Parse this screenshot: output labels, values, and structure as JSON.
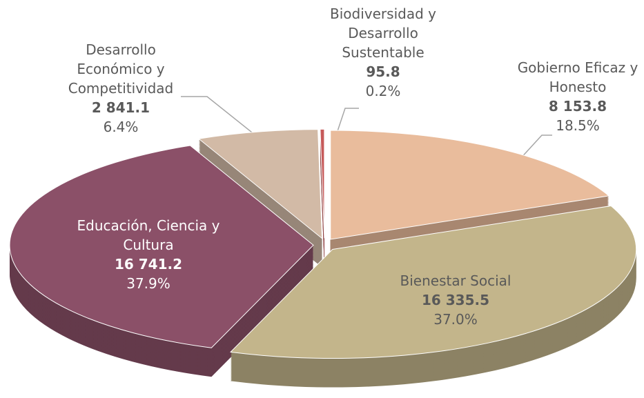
{
  "chart_data": {
    "type": "pie",
    "categories": [
      "Gobierno Eficaz y Honesto",
      "Bienestar Social",
      "Educación, Ciencia y Cultura",
      "Desarrollo Económico y Competitividad",
      "Biodiversidad y Desarrollo Sustentable"
    ],
    "values": [
      8153.8,
      16335.5,
      16741.2,
      2841.1,
      95.8
    ],
    "value_labels": [
      "8 153.8",
      "16 335.5",
      "16 741.2",
      "2 841.1",
      "95.8"
    ],
    "percents": [
      18.5,
      37.0,
      37.9,
      6.4,
      0.2
    ],
    "percent_labels": [
      "18.5%",
      "37.0%",
      "37.9%",
      "6.4%",
      "0.2%"
    ],
    "colors": [
      "#e9bc9c",
      "#c3b58b",
      "#8b5068",
      "#d2baa6",
      "#c65a5a"
    ]
  }
}
